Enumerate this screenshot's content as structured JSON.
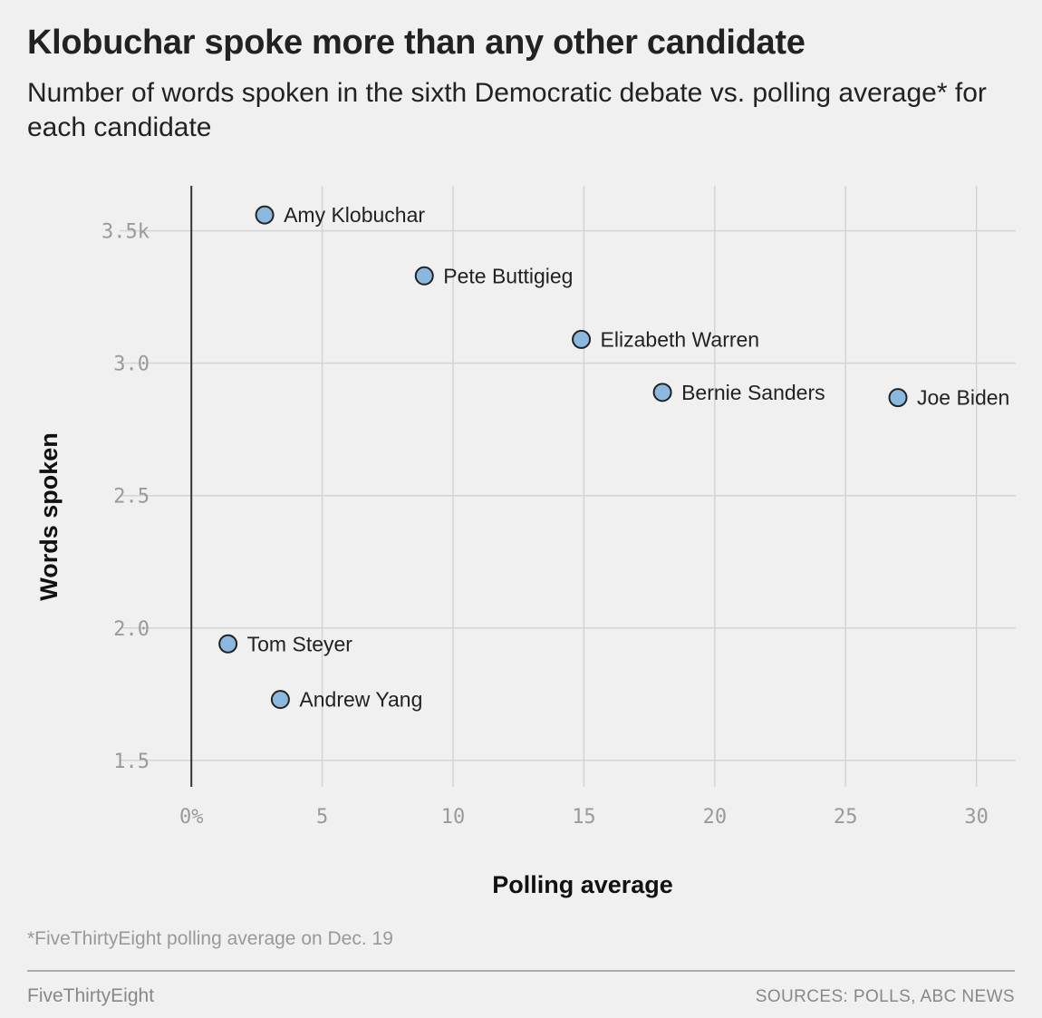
{
  "header": {
    "title": "Klobuchar spoke more than any other candidate",
    "subtitle": "Number of words spoken in the sixth Democratic debate vs. polling average* for each candidate"
  },
  "chart_data": {
    "type": "scatter",
    "title": "Klobuchar spoke more than any other candidate",
    "subtitle": "Number of words spoken in the sixth Democratic debate vs. polling average* for each candidate",
    "xlabel": "Polling average",
    "ylabel": "Words spoken",
    "xlim": [
      -2.5,
      31.5
    ],
    "ylim": [
      1.4,
      3.67
    ],
    "x_ticks": [
      0,
      5,
      10,
      15,
      20,
      25,
      30
    ],
    "x_tick_labels": [
      "0%",
      "5",
      "10",
      "15",
      "20",
      "25",
      "30"
    ],
    "y_ticks": [
      1.5,
      2.0,
      2.5,
      3.0,
      3.5
    ],
    "y_tick_labels": [
      "1.5",
      "2.0",
      "2.5",
      "3.0",
      "3.5k"
    ],
    "grid": true,
    "marker_color": "#8bb8df",
    "marker_edge_color": "#222222",
    "points": [
      {
        "label": "Amy Klobuchar",
        "x": 2.8,
        "y": 3.56
      },
      {
        "label": "Pete Buttigieg",
        "x": 8.9,
        "y": 3.33
      },
      {
        "label": "Elizabeth Warren",
        "x": 14.9,
        "y": 3.09
      },
      {
        "label": "Bernie Sanders",
        "x": 18.0,
        "y": 2.89
      },
      {
        "label": "Joe Biden",
        "x": 27.0,
        "y": 2.87
      },
      {
        "label": "Tom Steyer",
        "x": 1.4,
        "y": 1.94
      },
      {
        "label": "Andrew Yang",
        "x": 3.4,
        "y": 1.73
      }
    ]
  },
  "footer": {
    "footnote": "*FiveThirtyEight polling average on Dec. 19",
    "brand": "FiveThirtyEight",
    "sources": "SOURCES: POLLS, ABC NEWS"
  }
}
